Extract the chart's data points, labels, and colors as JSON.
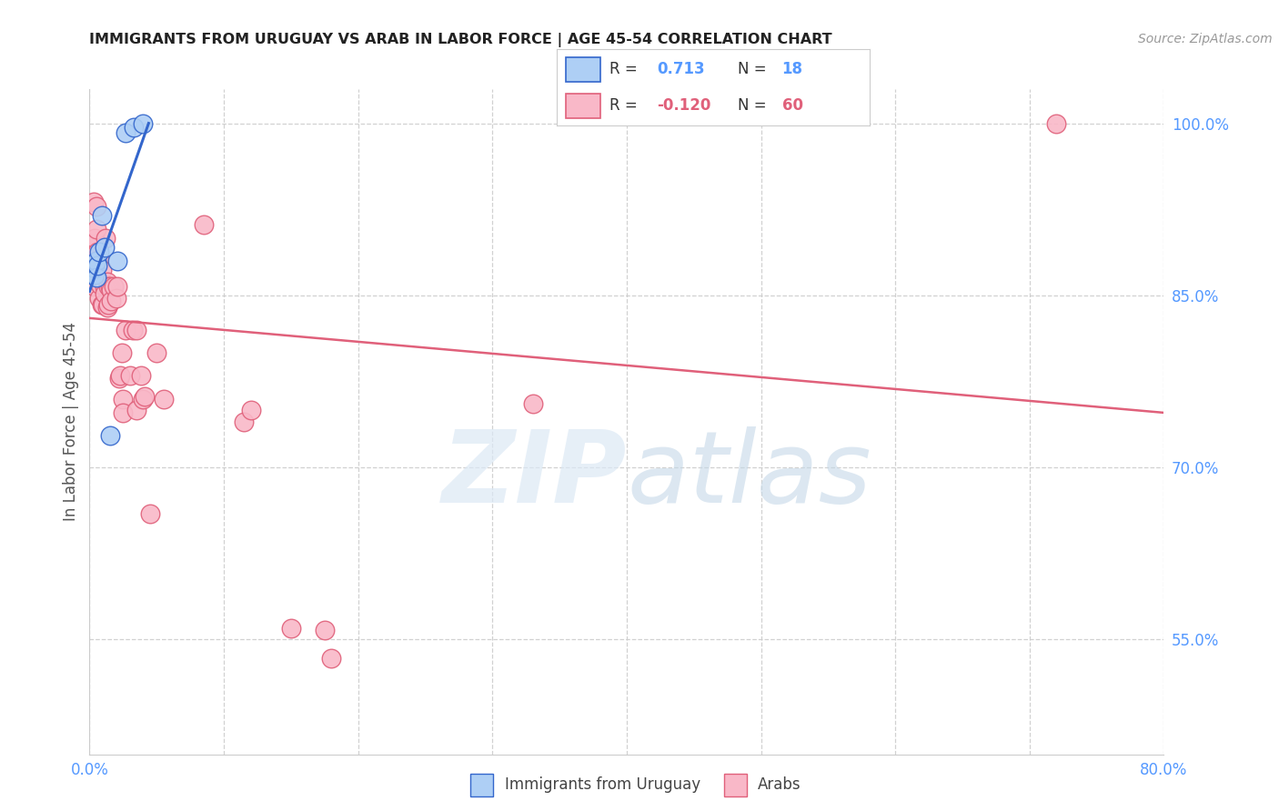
{
  "title": "IMMIGRANTS FROM URUGUAY VS ARAB IN LABOR FORCE | AGE 45-54 CORRELATION CHART",
  "source": "Source: ZipAtlas.com",
  "ylabel": "In Labor Force | Age 45-54",
  "x_min": 0.0,
  "x_max": 0.8,
  "y_min": 0.45,
  "y_max": 1.03,
  "x_ticks": [
    0.0,
    0.1,
    0.2,
    0.3,
    0.4,
    0.5,
    0.6,
    0.7,
    0.8
  ],
  "y_ticks": [
    0.55,
    0.7,
    0.85,
    1.0
  ],
  "y_tick_labels": [
    "55.0%",
    "70.0%",
    "85.0%",
    "100.0%"
  ],
  "legend_R_uruguay": "0.713",
  "legend_N_uruguay": "18",
  "legend_R_arab": "-0.120",
  "legend_N_arab": "60",
  "uruguay_color": "#aecff5",
  "arab_color": "#f9b8c8",
  "trendline_uruguay_color": "#3366cc",
  "trendline_arab_color": "#e0607a",
  "uruguay_points": [
    [
      0.001,
      0.872
    ],
    [
      0.002,
      0.875
    ],
    [
      0.002,
      0.868
    ],
    [
      0.003,
      0.872
    ],
    [
      0.003,
      0.878
    ],
    [
      0.004,
      0.868
    ],
    [
      0.004,
      0.874
    ],
    [
      0.005,
      0.88
    ],
    [
      0.005,
      0.866
    ],
    [
      0.006,
      0.876
    ],
    [
      0.007,
      0.888
    ],
    [
      0.009,
      0.92
    ],
    [
      0.011,
      0.892
    ],
    [
      0.015,
      0.728
    ],
    [
      0.021,
      0.88
    ],
    [
      0.027,
      0.992
    ],
    [
      0.033,
      0.997
    ],
    [
      0.04,
      1.0
    ]
  ],
  "arab_points": [
    [
      0.001,
      0.872
    ],
    [
      0.002,
      0.87
    ],
    [
      0.002,
      0.878
    ],
    [
      0.003,
      0.88
    ],
    [
      0.003,
      0.932
    ],
    [
      0.003,
      0.895
    ],
    [
      0.004,
      0.885
    ],
    [
      0.004,
      0.9
    ],
    [
      0.004,
      0.858
    ],
    [
      0.005,
      0.88
    ],
    [
      0.005,
      0.928
    ],
    [
      0.005,
      0.908
    ],
    [
      0.005,
      0.882
    ],
    [
      0.006,
      0.876
    ],
    [
      0.006,
      0.888
    ],
    [
      0.006,
      0.878
    ],
    [
      0.007,
      0.862
    ],
    [
      0.007,
      0.848
    ],
    [
      0.007,
      0.882
    ],
    [
      0.008,
      0.86
    ],
    [
      0.009,
      0.872
    ],
    [
      0.009,
      0.842
    ],
    [
      0.01,
      0.842
    ],
    [
      0.011,
      0.858
    ],
    [
      0.011,
      0.852
    ],
    [
      0.012,
      0.9
    ],
    [
      0.013,
      0.862
    ],
    [
      0.013,
      0.84
    ],
    [
      0.014,
      0.858
    ],
    [
      0.014,
      0.842
    ],
    [
      0.015,
      0.858
    ],
    [
      0.016,
      0.855
    ],
    [
      0.016,
      0.845
    ],
    [
      0.018,
      0.858
    ],
    [
      0.02,
      0.848
    ],
    [
      0.021,
      0.858
    ],
    [
      0.022,
      0.778
    ],
    [
      0.023,
      0.78
    ],
    [
      0.024,
      0.8
    ],
    [
      0.025,
      0.76
    ],
    [
      0.025,
      0.748
    ],
    [
      0.027,
      0.82
    ],
    [
      0.03,
      0.78
    ],
    [
      0.032,
      0.82
    ],
    [
      0.035,
      0.75
    ],
    [
      0.035,
      0.82
    ],
    [
      0.038,
      0.78
    ],
    [
      0.04,
      0.76
    ],
    [
      0.041,
      0.762
    ],
    [
      0.045,
      0.66
    ],
    [
      0.085,
      0.912
    ],
    [
      0.115,
      0.74
    ],
    [
      0.12,
      0.75
    ],
    [
      0.15,
      0.56
    ],
    [
      0.175,
      0.558
    ],
    [
      0.18,
      0.534
    ],
    [
      0.33,
      0.756
    ],
    [
      0.72,
      1.0
    ],
    [
      0.05,
      0.8
    ],
    [
      0.055,
      0.76
    ]
  ]
}
